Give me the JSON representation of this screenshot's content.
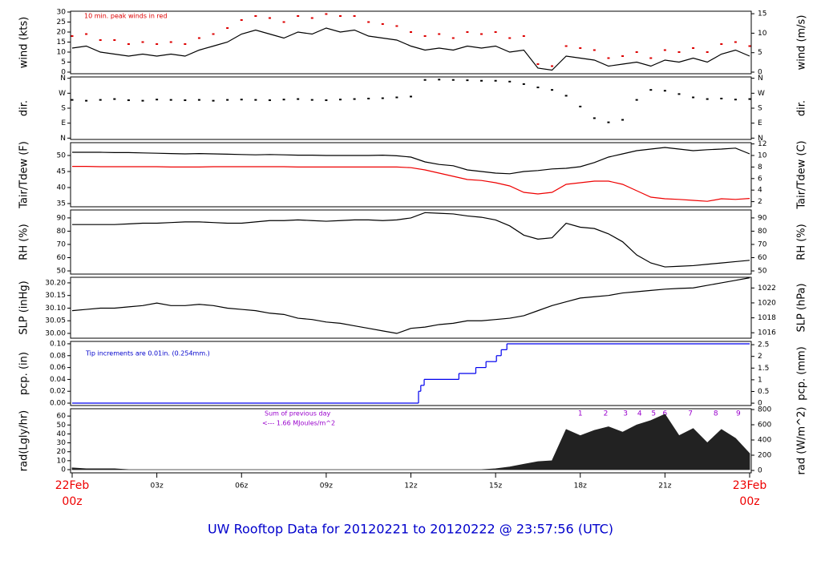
{
  "caption": "UW Rooftop Data for 20120221  to  20120222 @ 23:57:56  (UTC)",
  "chart_data": [
    {
      "type": "line",
      "ylabel": "wind (kts)",
      "y2label": "wind (m/s)",
      "annotation": [
        "10 min. peak winds in red"
      ],
      "annotation_color": "#dd0000",
      "xlim": [
        0,
        24
      ],
      "ylim": [
        -0.8,
        30.4
      ],
      "yticks": [
        0,
        5,
        10,
        15,
        20,
        25,
        30
      ],
      "y2lim": [
        -0.41,
        15.64
      ],
      "y2ticks": [
        0,
        5,
        10,
        15
      ],
      "x": [
        0,
        0.5,
        1,
        1.5,
        2,
        2.5,
        3,
        3.5,
        4,
        4.5,
        5,
        5.5,
        6,
        6.5,
        7,
        7.5,
        8,
        8.5,
        9,
        9.5,
        10,
        10.5,
        11,
        11.5,
        12,
        12.5,
        13,
        13.5,
        14,
        14.5,
        15,
        15.5,
        16,
        16.5,
        17,
        17.5,
        18,
        18.5,
        19,
        19.5,
        20,
        20.5,
        21,
        21.5,
        22,
        22.5,
        23,
        23.5,
        24
      ],
      "series": [
        {
          "color": "#000000",
          "mark": "line",
          "values": [
            12,
            13,
            10,
            9,
            8,
            9,
            8,
            9,
            8,
            11,
            13,
            15,
            19,
            21,
            19,
            17,
            20,
            19,
            22,
            20,
            21,
            18,
            17,
            16,
            13,
            11,
            12,
            11,
            13,
            12,
            13,
            10,
            11,
            2,
            1,
            8,
            7,
            6,
            3,
            4,
            5,
            3,
            6,
            5,
            7,
            5,
            9,
            11,
            8
          ]
        },
        {
          "color": "#dd0000",
          "mark": "dot",
          "values": [
            18,
            19,
            16,
            16,
            14,
            15,
            14,
            15,
            14,
            17,
            19,
            22,
            26,
            28,
            27,
            25,
            28,
            27,
            29,
            28,
            28,
            25,
            24,
            23,
            20,
            18,
            19,
            17,
            20,
            19,
            20,
            17,
            18,
            4,
            3,
            13,
            12,
            11,
            7,
            8,
            10,
            7,
            11,
            10,
            12,
            10,
            14,
            15,
            13
          ]
        }
      ]
    },
    {
      "type": "scatter",
      "ylabel": "dir.",
      "y2label": "dir.",
      "xlim": [
        0,
        24
      ],
      "ylim": [
        -8,
        368
      ],
      "yticks": [
        {
          "value": 0,
          "label": "N"
        },
        {
          "value": 90,
          "label": "E"
        },
        {
          "value": 180,
          "label": "S"
        },
        {
          "value": 270,
          "label": "W"
        },
        {
          "value": 360,
          "label": "N"
        }
      ],
      "y2lim": [
        -8,
        368
      ],
      "y2ticks": [
        {
          "value": 0,
          "label": "N"
        },
        {
          "value": 90,
          "label": "E"
        },
        {
          "value": 180,
          "label": "S"
        },
        {
          "value": 270,
          "label": "W"
        },
        {
          "value": 360,
          "label": "N"
        }
      ],
      "x": [
        0,
        0.5,
        1,
        1.5,
        2,
        2.5,
        3,
        3.5,
        4,
        4.5,
        5,
        5.5,
        6,
        6.5,
        7,
        7.5,
        8,
        8.5,
        9,
        9.5,
        10,
        10.5,
        11,
        11.5,
        12,
        12.5,
        13,
        13.5,
        14,
        14.5,
        15,
        15.5,
        16,
        16.5,
        17,
        17.5,
        18,
        18.5,
        19,
        19.5,
        20,
        20.5,
        21,
        21.5,
        22,
        22.5,
        23,
        23.5,
        24
      ],
      "series": [
        {
          "color": "#000000",
          "mark": "dot",
          "values": [
            230,
            225,
            230,
            235,
            228,
            225,
            232,
            230,
            228,
            230,
            225,
            230,
            232,
            230,
            228,
            232,
            235,
            230,
            228,
            232,
            235,
            238,
            240,
            245,
            250,
            350,
            352,
            350,
            348,
            345,
            345,
            340,
            325,
            305,
            290,
            255,
            190,
            120,
            95,
            110,
            230,
            290,
            285,
            265,
            245,
            235,
            238,
            232,
            235
          ]
        }
      ]
    },
    {
      "type": "line",
      "ylabel": "Tair/Tdew (F)",
      "y2label": "Tair/Tdew (C)",
      "xlim": [
        0,
        24
      ],
      "ylim": [
        34,
        54
      ],
      "yticks": [
        35,
        40,
        45,
        50
      ],
      "y2lim": [
        1.11,
        12.22
      ],
      "y2ticks": [
        2,
        4,
        6,
        8,
        10,
        12
      ],
      "x": [
        0,
        0.5,
        1,
        1.5,
        2,
        2.5,
        3,
        3.5,
        4,
        4.5,
        5,
        5.5,
        6,
        6.5,
        7,
        7.5,
        8,
        8.5,
        9,
        9.5,
        10,
        10.5,
        11,
        11.5,
        12,
        12.5,
        13,
        13.5,
        14,
        14.5,
        15,
        15.5,
        16,
        16.5,
        17,
        17.5,
        18,
        18.5,
        19,
        19.5,
        20,
        20.5,
        21,
        21.5,
        22,
        22.5,
        23,
        23.5,
        24
      ],
      "series": [
        {
          "color": "#000000",
          "mark": "line",
          "values": [
            51,
            51,
            51,
            50.9,
            50.9,
            50.8,
            50.7,
            50.6,
            50.5,
            50.6,
            50.5,
            50.4,
            50.3,
            50.2,
            50.3,
            50.2,
            50.1,
            50.1,
            50,
            50,
            50,
            50,
            50.1,
            49.9,
            49.5,
            48,
            47.2,
            46.8,
            45.5,
            45,
            44.5,
            44.3,
            45,
            45.3,
            45.8,
            46,
            46.5,
            47.8,
            49.5,
            50.5,
            51.5,
            52,
            52.5,
            52,
            51.5,
            51.8,
            52,
            52.3,
            50.5
          ]
        },
        {
          "color": "#ee0000",
          "mark": "line",
          "values": [
            46.6,
            46.6,
            46.5,
            46.5,
            46.5,
            46.5,
            46.5,
            46.4,
            46.4,
            46.4,
            46.5,
            46.5,
            46.5,
            46.5,
            46.5,
            46.5,
            46.4,
            46.4,
            46.4,
            46.4,
            46.4,
            46.4,
            46.4,
            46.4,
            46.2,
            45.5,
            44.5,
            43.5,
            42.5,
            42.2,
            41.5,
            40.5,
            38.5,
            38,
            38.5,
            41,
            41.5,
            42,
            42,
            41,
            39,
            37,
            36.5,
            36.3,
            36,
            35.7,
            36.5,
            36.3,
            36.6
          ]
        }
      ]
    },
    {
      "type": "line",
      "ylabel": "RH (%)",
      "y2label": "RH (%)",
      "xlim": [
        0,
        24
      ],
      "ylim": [
        47.6,
        96
      ],
      "yticks": [
        50,
        60,
        70,
        80,
        90
      ],
      "y2lim": [
        47.6,
        96
      ],
      "y2ticks": [
        50,
        60,
        70,
        80,
        90
      ],
      "x": [
        0,
        0.5,
        1,
        1.5,
        2,
        2.5,
        3,
        3.5,
        4,
        4.5,
        5,
        5.5,
        6,
        6.5,
        7,
        7.5,
        8,
        8.5,
        9,
        9.5,
        10,
        10.5,
        11,
        11.5,
        12,
        12.5,
        13,
        13.5,
        14,
        14.5,
        15,
        15.5,
        16,
        16.5,
        17,
        17.5,
        18,
        18.5,
        19,
        19.5,
        20,
        20.5,
        21,
        21.5,
        22,
        22.5,
        23,
        23.5,
        24
      ],
      "series": [
        {
          "color": "#000000",
          "mark": "line",
          "values": [
            85,
            85,
            85,
            85,
            85.5,
            86,
            86,
            86.5,
            87,
            87,
            86.5,
            86,
            86,
            87,
            88,
            88,
            88.5,
            88,
            87.5,
            88,
            88.5,
            88.5,
            88,
            88.5,
            90,
            94,
            93.5,
            93,
            91.5,
            90.5,
            88.5,
            84,
            77,
            74,
            75,
            86,
            83,
            82,
            78,
            72,
            62,
            56,
            53,
            53.5,
            54,
            55,
            56,
            57,
            58
          ]
        }
      ]
    },
    {
      "type": "line",
      "ylabel": "SLP (inHg)",
      "y2label": "SLP (hPa)",
      "xlim": [
        0,
        24
      ],
      "ylim": [
        29.981,
        30.222
      ],
      "yticks": [
        {
          "value": 30.0,
          "label": "30.00"
        },
        {
          "value": 30.05,
          "label": "30.05"
        },
        {
          "value": 30.1,
          "label": "30.10"
        },
        {
          "value": 30.15,
          "label": "30.15"
        },
        {
          "value": 30.2,
          "label": "30.20"
        }
      ],
      "y2lim": [
        1015.27,
        1023.43
      ],
      "y2ticks": [
        1016,
        1018,
        1020,
        1022
      ],
      "x": [
        0,
        0.5,
        1,
        1.5,
        2,
        2.5,
        3,
        3.5,
        4,
        4.5,
        5,
        5.5,
        6,
        6.5,
        7,
        7.5,
        8,
        8.5,
        9,
        9.5,
        10,
        10.5,
        11,
        11.5,
        12,
        12.5,
        13,
        13.5,
        14,
        14.5,
        15,
        15.5,
        16,
        16.5,
        17,
        17.5,
        18,
        18.5,
        19,
        19.5,
        20,
        20.5,
        21,
        21.5,
        22,
        22.5,
        23,
        23.5,
        24
      ],
      "series": [
        {
          "color": "#000000",
          "mark": "line",
          "values": [
            30.09,
            30.095,
            30.1,
            30.1,
            30.105,
            30.11,
            30.12,
            30.11,
            30.11,
            30.115,
            30.11,
            30.1,
            30.095,
            30.09,
            30.08,
            30.075,
            30.06,
            30.055,
            30.045,
            30.04,
            30.03,
            30.02,
            30.01,
            30.0,
            30.02,
            30.025,
            30.035,
            30.04,
            30.05,
            30.05,
            30.055,
            30.06,
            30.07,
            30.09,
            30.11,
            30.125,
            30.14,
            30.145,
            30.15,
            30.16,
            30.165,
            30.17,
            30.175,
            30.178,
            30.18,
            30.19,
            30.2,
            30.21,
            30.22
          ]
        }
      ]
    },
    {
      "type": "step",
      "ylabel": "pcp. (in)",
      "y2label": "pcp. (mm)",
      "annotation": [
        "Tip increments are 0.01in. (0.254mm.)"
      ],
      "annotation_color": "#0000cc",
      "xlim": [
        0,
        24
      ],
      "ylim": [
        -0.004,
        0.104
      ],
      "yticks": [
        {
          "value": 0,
          "label": "0.00"
        },
        {
          "value": 0.02,
          "label": "0.02"
        },
        {
          "value": 0.04,
          "label": "0.04"
        },
        {
          "value": 0.06,
          "label": "0.06"
        },
        {
          "value": 0.08,
          "label": "0.08"
        },
        {
          "value": 0.1,
          "label": "0.10"
        }
      ],
      "y2lim": [
        -0.1,
        2.64
      ],
      "y2ticks": [
        0,
        0.5,
        1,
        1.5,
        2,
        2.5
      ],
      "x": [
        0,
        12.27,
        12.35,
        12.47,
        13.7,
        14.3,
        14.66,
        15.03,
        15.2,
        15.4,
        24
      ],
      "series": [
        {
          "color": "#0000ee",
          "mark": "step",
          "values": [
            0,
            0.02,
            0.03,
            0.04,
            0.05,
            0.06,
            0.07,
            0.08,
            0.09,
            0.1,
            0.1
          ]
        }
      ]
    },
    {
      "type": "area",
      "ylabel": "rad(Lgly/hr)",
      "y2label": "rad (W/m^2)",
      "annotation": [
        "Sum of previous day",
        "<--- 1.66 MJoules/m^2"
      ],
      "annotation_color": "#9900cc",
      "marker_x": [
        18.0,
        18.9,
        19.6,
        20.1,
        20.6,
        21.0,
        21.9,
        22.8,
        23.6
      ],
      "marker_labels": [
        1,
        2,
        3,
        4,
        5,
        6,
        7,
        8,
        9
      ],
      "marker_color": "#9900cc",
      "xlim": [
        0,
        24
      ],
      "ylim": [
        -3.6,
        68.2
      ],
      "yticks": [
        0,
        10,
        20,
        30,
        40,
        50,
        60
      ],
      "y2lim": [
        -31.6,
        810.5
      ],
      "y2ticks": [
        0,
        200,
        400,
        600,
        800
      ],
      "xticks": [
        {
          "value": 0,
          "label": "22Feb",
          "sublabel": "00z"
        },
        {
          "value": 3,
          "label": "03z"
        },
        {
          "value": 6,
          "label": "06z"
        },
        {
          "value": 9,
          "label": "09z"
        },
        {
          "value": 12,
          "label": "12z"
        },
        {
          "value": 15,
          "label": "15z"
        },
        {
          "value": 18,
          "label": "18z"
        },
        {
          "value": 21,
          "label": "21z"
        },
        {
          "value": 24,
          "label": "23Feb",
          "sublabel": "00z"
        }
      ],
      "xtick_edge_color": "#ee0000",
      "x": [
        0,
        0.5,
        1,
        1.5,
        2,
        2.5,
        3,
        3.5,
        4,
        4.5,
        5,
        5.5,
        6,
        6.5,
        7,
        7.5,
        8,
        8.5,
        9,
        9.5,
        10,
        10.5,
        11,
        11.5,
        12,
        12.5,
        13,
        13.5,
        14,
        14.5,
        15,
        15.5,
        16,
        16.5,
        17,
        17.5,
        18,
        18.5,
        19,
        19.5,
        20,
        20.5,
        21,
        21.5,
        22,
        22.5,
        23,
        23.5,
        24
      ],
      "series": [
        {
          "color": "#222222",
          "mark": "area",
          "values": [
            2,
            1,
            1,
            1,
            0,
            0,
            0,
            0,
            0,
            0,
            0,
            0,
            0,
            0,
            0,
            0,
            0,
            0,
            0,
            0,
            0,
            0,
            0,
            0,
            0,
            0,
            0,
            0,
            0,
            0,
            1,
            3,
            6,
            9,
            10,
            45,
            38,
            44,
            48,
            42,
            50,
            55,
            62,
            38,
            46,
            30,
            45,
            35,
            18
          ]
        }
      ]
    }
  ]
}
